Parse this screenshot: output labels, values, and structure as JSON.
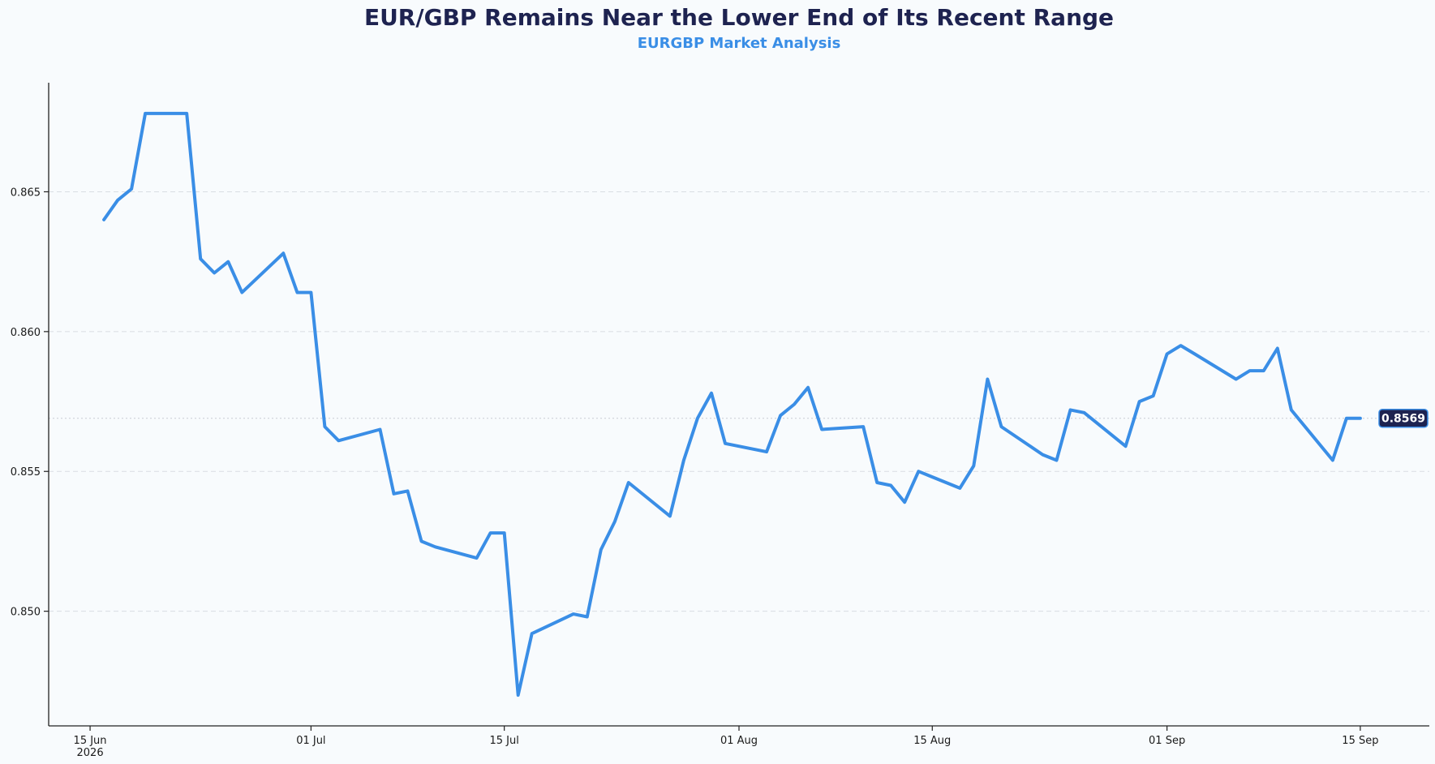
{
  "chart_data": {
    "type": "line",
    "title": "EUR/GBP Remains Near the Lower End of Its Recent Range",
    "subtitle": "EURGBP Market Analysis",
    "xlabel": "",
    "ylabel": "",
    "ylim": [
      0.8459,
      0.8689
    ],
    "xlim": [
      "2026-06-12",
      "2026-09-20"
    ],
    "grid": "horizontal dashed",
    "legend": "none",
    "y_ticks": [
      0.85,
      0.855,
      0.86,
      0.865
    ],
    "y_tick_labels": [
      "0.850",
      "0.855",
      "0.860",
      "0.865"
    ],
    "x_ticks": [
      {
        "date": "2026-06-15",
        "label": "15 Jun",
        "sublabel": "2026"
      },
      {
        "date": "2026-07-01",
        "label": "01 Jul",
        "sublabel": ""
      },
      {
        "date": "2026-07-15",
        "label": "15 Jul",
        "sublabel": ""
      },
      {
        "date": "2026-08-01",
        "label": "01 Aug",
        "sublabel": ""
      },
      {
        "date": "2026-08-15",
        "label": "15 Aug",
        "sublabel": ""
      },
      {
        "date": "2026-09-01",
        "label": "01 Sep",
        "sublabel": ""
      },
      {
        "date": "2026-09-15",
        "label": "15 Sep",
        "sublabel": ""
      }
    ],
    "last_value": 0.8569,
    "last_value_label": "0.8569",
    "colors": {
      "line": "#3a8ee6",
      "title": "#1e2350",
      "subtitle": "#3a8ee6",
      "badge_fill": "#1e2350",
      "badge_stroke": "#3a8ee6"
    },
    "series": [
      {
        "x": [
          "2026-06-16",
          "2026-06-17",
          "2026-06-18",
          "2026-06-19",
          "2026-06-22",
          "2026-06-23",
          "2026-06-24",
          "2026-06-25",
          "2026-06-26",
          "2026-06-29",
          "2026-06-30",
          "2026-07-01",
          "2026-07-02",
          "2026-07-03",
          "2026-07-06",
          "2026-07-07",
          "2026-07-08",
          "2026-07-09",
          "2026-07-10",
          "2026-07-13",
          "2026-07-14",
          "2026-07-15",
          "2026-07-16",
          "2026-07-17",
          "2026-07-20",
          "2026-07-21",
          "2026-07-22",
          "2026-07-23",
          "2026-07-24",
          "2026-07-27",
          "2026-07-28",
          "2026-07-29",
          "2026-07-30",
          "2026-07-31",
          "2026-08-03",
          "2026-08-04",
          "2026-08-05",
          "2026-08-06",
          "2026-08-07",
          "2026-08-10",
          "2026-08-11",
          "2026-08-12",
          "2026-08-13",
          "2026-08-14",
          "2026-08-17",
          "2026-08-18",
          "2026-08-19",
          "2026-08-20",
          "2026-08-23",
          "2026-08-24",
          "2026-08-25",
          "2026-08-26",
          "2026-08-29",
          "2026-08-30",
          "2026-08-31",
          "2026-09-01",
          "2026-09-02",
          "2026-09-03",
          "2026-09-06",
          "2026-09-07",
          "2026-09-08",
          "2026-09-09",
          "2026-09-10",
          "2026-09-13",
          "2026-09-14",
          "2026-09-15"
        ],
        "y": [
          0.864,
          0.8647,
          0.8651,
          0.8678,
          0.8678,
          0.8626,
          0.8621,
          0.8625,
          0.8614,
          0.8628,
          0.8614,
          0.8614,
          0.8566,
          0.8561,
          0.8565,
          0.8542,
          0.8543,
          0.8525,
          0.8523,
          0.8519,
          0.8528,
          0.8528,
          0.847,
          0.8492,
          0.8499,
          0.8498,
          0.8522,
          0.8532,
          0.8546,
          0.8534,
          0.8554,
          0.8569,
          0.8578,
          0.856,
          0.8557,
          0.857,
          0.8574,
          0.858,
          0.8565,
          0.8566,
          0.8546,
          0.8545,
          0.8539,
          0.855,
          0.8544,
          0.8552,
          0.8583,
          0.8566,
          0.8556,
          0.8554,
          0.8572,
          0.8571,
          0.8559,
          0.8575,
          0.8577,
          0.8592,
          0.8595,
          0.8592,
          0.8583,
          0.8586,
          0.8586,
          0.8594,
          0.8572,
          0.8554,
          0.8569,
          0.8569
        ]
      }
    ]
  }
}
